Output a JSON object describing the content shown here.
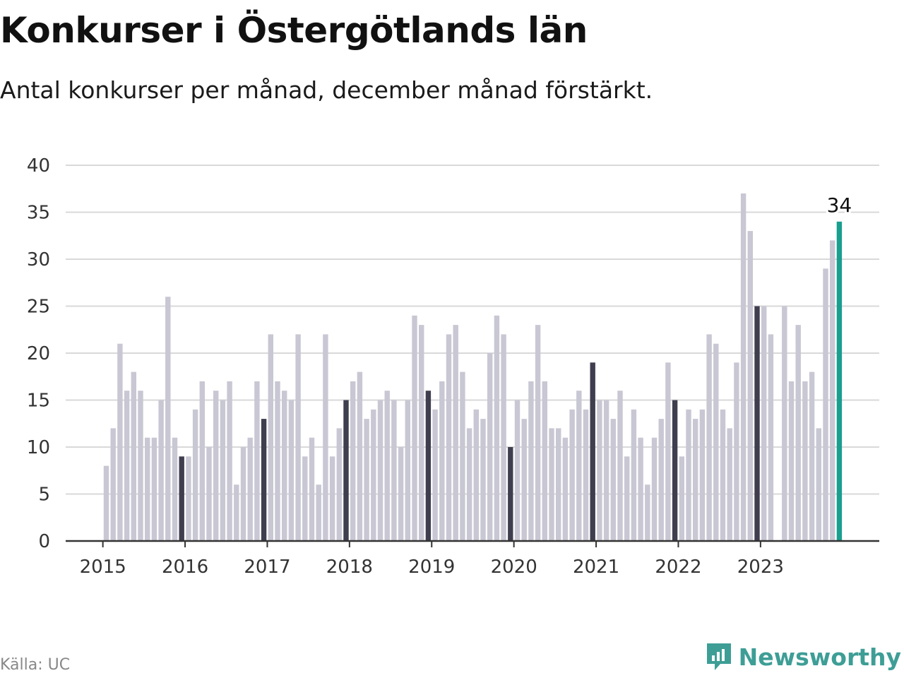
{
  "title": "Konkurser i Östergötlands län",
  "subtitle": "Antal konkurser per månad, december månad förstärkt.",
  "source": "Källa: UC",
  "brand": "Newsworthy",
  "colors": {
    "normal": "#c8c7d3",
    "december": "#3f3e4f",
    "latest": "#1a9e8f",
    "grid": "#d9d9d9",
    "axis": "#333333",
    "brand": "#3e9e96"
  },
  "chart_data": {
    "type": "bar",
    "ylim": [
      0,
      40
    ],
    "yticks": [
      0,
      5,
      10,
      15,
      20,
      25,
      30,
      35,
      40
    ],
    "xticks": [
      "2015",
      "2016",
      "2017",
      "2018",
      "2019",
      "2020",
      "2021",
      "2022",
      "2023"
    ],
    "grid": true,
    "highlight_label": "34",
    "values": [
      8,
      12,
      21,
      16,
      18,
      16,
      11,
      11,
      15,
      26,
      11,
      9,
      9,
      14,
      17,
      10,
      16,
      15,
      17,
      6,
      10,
      11,
      17,
      13,
      22,
      17,
      16,
      15,
      22,
      9,
      11,
      6,
      22,
      9,
      12,
      15,
      17,
      18,
      13,
      14,
      15,
      16,
      15,
      10,
      15,
      24,
      23,
      16,
      14,
      17,
      22,
      23,
      18,
      12,
      14,
      13,
      20,
      24,
      22,
      10,
      15,
      13,
      17,
      23,
      17,
      12,
      12,
      11,
      14,
      16,
      14,
      19,
      15,
      15,
      13,
      16,
      9,
      14,
      11,
      6,
      11,
      13,
      19,
      15,
      9,
      14,
      13,
      14,
      22,
      21,
      14,
      12,
      19,
      37,
      33,
      25,
      25,
      22,
      0,
      25,
      17,
      23,
      17,
      18,
      12,
      29,
      32,
      34
    ]
  }
}
